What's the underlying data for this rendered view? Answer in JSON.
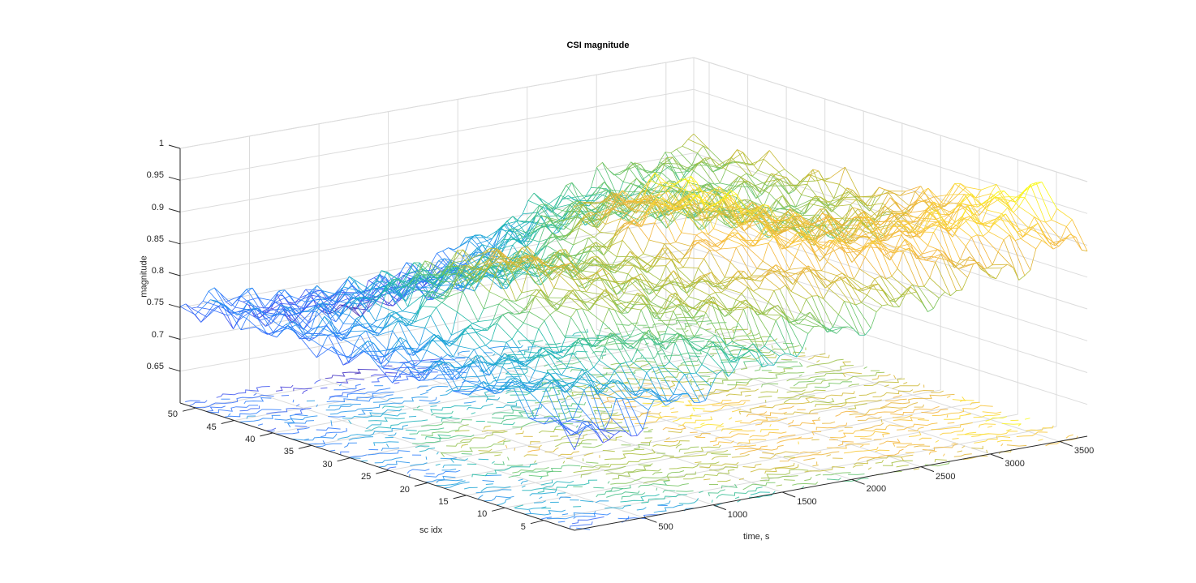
{
  "chart_data": {
    "type": "mesh3d",
    "title": "CSI magnitude",
    "xlabel": "time, s",
    "ylabel": "sc idx",
    "zlabel": "magnitude",
    "xlim": [
      0,
      3700
    ],
    "ylim": [
      1,
      52
    ],
    "zlim": [
      0.6,
      1.0
    ],
    "xticks": [
      500,
      1000,
      1500,
      2000,
      2500,
      3000,
      3500
    ],
    "yticks": [
      5,
      10,
      15,
      20,
      25,
      30,
      35,
      40,
      45,
      50
    ],
    "zticks": [
      0.65,
      0.7,
      0.75,
      0.8,
      0.85,
      0.9,
      0.95,
      1
    ],
    "xtick_labels": [
      "500",
      "1000",
      "1500",
      "2000",
      "2500",
      "3000",
      "3500"
    ],
    "ytick_labels": [
      "5",
      "10",
      "15",
      "20",
      "25",
      "30",
      "35",
      "40",
      "45",
      "50"
    ],
    "ztick_labels": [
      "0.65",
      "0.7",
      "0.75",
      "0.8",
      "0.85",
      "0.9",
      "0.95",
      "1"
    ],
    "colormap": "parula",
    "colormap_stops": [
      "#3e26a8",
      "#4746eb",
      "#2c7dfe",
      "#1ba4da",
      "#20bba7",
      "#6ac56a",
      "#b7bd33",
      "#f3b33c",
      "#fbd234",
      "#f9fb15"
    ],
    "grid": true,
    "view": {
      "azimuth": -37.5,
      "elevation": 30
    },
    "surface_profile": {
      "description": "Wireframe mesh of CSI magnitude over time and subcarrier index with contour projection on floor plane",
      "time_samples": [
        0,
        250,
        500,
        750,
        1000,
        1250,
        1500,
        1750,
        2000,
        2250,
        2500,
        2750,
        3000,
        3250,
        3500,
        3700
      ],
      "low_sc_ridge_magnitude": [
        0.78,
        0.79,
        0.8,
        0.82,
        0.84,
        0.86,
        0.87,
        0.88,
        0.89,
        0.9,
        0.91,
        0.92,
        0.93,
        0.94,
        0.95,
        0.96
      ],
      "mid_sc_magnitude": [
        0.76,
        0.77,
        0.8,
        0.88,
        0.9,
        0.87,
        0.86,
        0.87,
        0.93,
        0.96,
        0.91,
        0.88,
        0.86,
        0.85,
        0.87,
        0.88
      ],
      "high_sc_magnitude": [
        0.76,
        0.75,
        0.74,
        0.72,
        0.72,
        0.71,
        0.73,
        0.74,
        0.76,
        0.78,
        0.8,
        0.82,
        0.83,
        0.84,
        0.85,
        0.86
      ]
    }
  }
}
